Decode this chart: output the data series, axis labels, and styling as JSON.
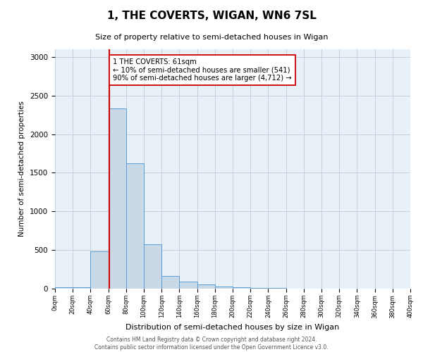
{
  "title": "1, THE COVERTS, WIGAN, WN6 7SL",
  "subtitle": "Size of property relative to semi-detached houses in Wigan",
  "xlabel": "Distribution of semi-detached houses by size in Wigan",
  "ylabel": "Number of semi-detached properties",
  "bin_edges": [
    0,
    20,
    40,
    60,
    80,
    100,
    120,
    140,
    160,
    180,
    200,
    220,
    240,
    260,
    280,
    300,
    320,
    340,
    360,
    380,
    400
  ],
  "bar_heights": [
    20,
    20,
    480,
    2330,
    1620,
    570,
    160,
    95,
    55,
    30,
    20,
    10,
    5,
    3,
    2,
    1,
    1,
    0,
    0,
    0
  ],
  "bar_color": "#c9d9e8",
  "bar_edgecolor": "#5b9bd5",
  "property_sqm": 61,
  "property_label": "1 THE COVERTS: 61sqm",
  "pct_smaller": 10,
  "n_smaller": 541,
  "pct_larger": 90,
  "n_larger": 4712,
  "vline_color": "#cc0000",
  "annotation_box_edgecolor": "#cc0000",
  "ylim": [
    0,
    3100
  ],
  "yticks": [
    0,
    500,
    1000,
    1500,
    2000,
    2500,
    3000
  ],
  "footer_line1": "Contains HM Land Registry data © Crown copyright and database right 2024.",
  "footer_line2": "Contains public sector information licensed under the Open Government Licence v3.0.",
  "background_color": "#ffffff",
  "axes_background_color": "#e8f0f8",
  "grid_color": "#c0ccd8"
}
